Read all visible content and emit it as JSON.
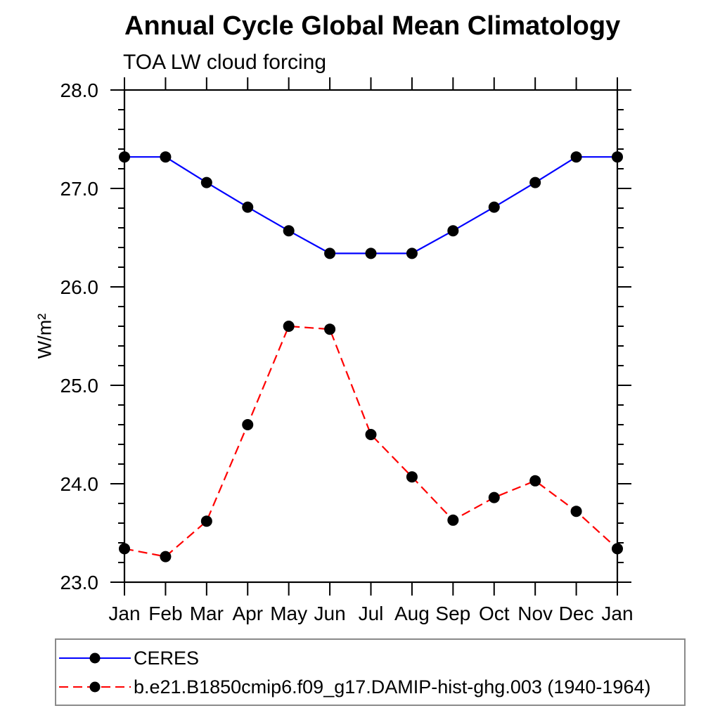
{
  "chart_data": {
    "type": "line",
    "title": "Annual Cycle Global Mean Climatology",
    "subtitle": "TOA LW cloud forcing",
    "ylabel": "W/m²",
    "categories": [
      "Jan",
      "Feb",
      "Mar",
      "Apr",
      "May",
      "Jun",
      "Jul",
      "Aug",
      "Sep",
      "Oct",
      "Nov",
      "Dec",
      "Jan"
    ],
    "ylim": [
      23.0,
      28.0
    ],
    "y_major_ticks": [
      {
        "value": 23.0,
        "label": "23.0"
      },
      {
        "value": 24.0,
        "label": "24.0"
      },
      {
        "value": 25.0,
        "label": "25.0"
      },
      {
        "value": 26.0,
        "label": "26.0"
      },
      {
        "value": 27.0,
        "label": "27.0"
      },
      {
        "value": 28.0,
        "label": "28.0"
      }
    ],
    "y_minor_step": 0.2,
    "grid": false,
    "legend_position": "bottom-left-box",
    "axis_color": "#000000",
    "series": [
      {
        "name": "CERES",
        "line_color": "#0000ff",
        "line_style": "solid",
        "marker": "filled-circle",
        "marker_color": "#000000",
        "values": [
          27.32,
          27.32,
          27.06,
          26.81,
          26.57,
          26.34,
          26.34,
          26.34,
          26.57,
          26.81,
          27.06,
          27.32,
          27.32
        ]
      },
      {
        "name": "b.e21.B1850cmip6.f09_g17.DAMIP-hist-ghg.003 (1940-1964)",
        "line_color": "#ff0000",
        "line_style": "dashed",
        "marker": "filled-circle",
        "marker_color": "#000000",
        "values": [
          23.34,
          23.26,
          23.62,
          24.6,
          25.6,
          25.57,
          24.5,
          24.07,
          23.63,
          23.86,
          24.03,
          23.72,
          23.34
        ]
      }
    ]
  }
}
